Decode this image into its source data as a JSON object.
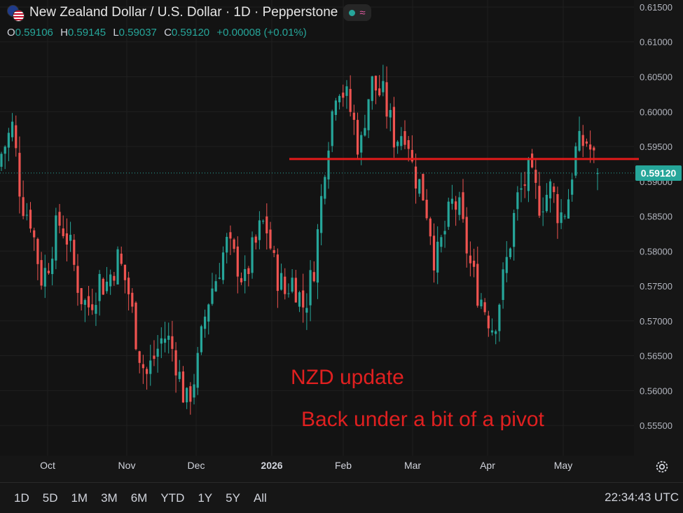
{
  "header": {
    "title": "New Zealand Dollar / U.S. Dollar · 1D · Pepperstone",
    "ohlc": [
      {
        "key": "O",
        "value": "0.59106"
      },
      {
        "key": "H",
        "value": "0.59145"
      },
      {
        "key": "L",
        "value": "0.59037"
      },
      {
        "key": "C",
        "value": "0.59120"
      }
    ],
    "change": "+0.00008 (+0.01%)"
  },
  "last_price_label": "0.59120",
  "annotations": {
    "line1": "NZD update",
    "line2": "Back under a bit of a pivot"
  },
  "timeframes": [
    "1D",
    "5D",
    "1M",
    "3M",
    "6M",
    "YTD",
    "1Y",
    "5Y",
    "All"
  ],
  "clock": "22:34:43 UTC",
  "colors": {
    "up": "#26a69a",
    "down": "#ef5350",
    "pivot": "#e21a1a",
    "annotation": "#e02020"
  },
  "chart_data": {
    "type": "candlestick",
    "title": "New Zealand Dollar / U.S. Dollar · 1D · Pepperstone",
    "y_ticks": [
      "0.55500",
      "0.56000",
      "0.56500",
      "0.57000",
      "0.57500",
      "0.58000",
      "0.58500",
      "0.59000",
      "0.59500",
      "0.60000",
      "0.60500",
      "0.61000",
      "0.61500"
    ],
    "ylim": [
      0.5535,
      0.6155
    ],
    "x_ticks": [
      "Oct",
      "Nov",
      "Dec",
      "2026",
      "Feb",
      "Mar",
      "Apr",
      "May"
    ],
    "pivot_level": 0.5932,
    "last_price": 0.5912,
    "close_path": [
      0.594,
      0.596,
      0.598,
      0.59,
      0.586,
      0.585,
      0.58,
      0.576,
      0.578,
      0.582,
      0.584,
      0.583,
      0.58,
      0.576,
      0.573,
      0.572,
      0.574,
      0.576,
      0.575,
      0.577,
      0.579,
      0.577,
      0.574,
      0.569,
      0.565,
      0.562,
      0.564,
      0.566,
      0.568,
      0.567,
      0.565,
      0.561,
      0.558,
      0.561,
      0.564,
      0.57,
      0.574,
      0.576,
      0.579,
      0.581,
      0.579,
      0.578,
      0.575,
      0.579,
      0.581,
      0.584,
      0.583,
      0.578,
      0.576,
      0.574,
      0.576,
      0.575,
      0.572,
      0.574,
      0.578,
      0.585,
      0.594,
      0.599,
      0.605,
      0.603,
      0.601,
      0.598,
      0.594,
      0.601,
      0.604,
      0.603,
      0.602,
      0.599,
      0.596,
      0.597,
      0.598,
      0.592,
      0.59,
      0.588,
      0.584,
      0.578,
      0.581,
      0.584,
      0.587,
      0.586,
      0.582,
      0.578,
      0.575,
      0.573,
      0.571,
      0.569,
      0.573,
      0.577,
      0.582,
      0.587,
      0.589,
      0.591,
      0.589,
      0.587,
      0.588,
      0.589,
      0.586,
      0.585,
      0.588,
      0.594,
      0.595,
      0.596,
      0.594,
      0.5912
    ]
  }
}
